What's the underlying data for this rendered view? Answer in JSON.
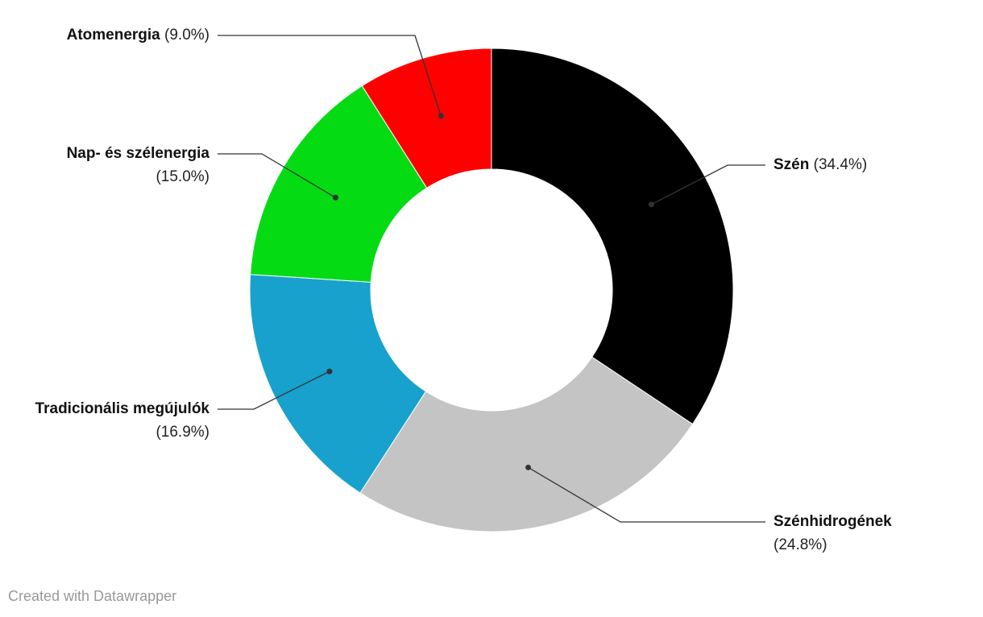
{
  "chart_data": {
    "type": "donut",
    "categories": [
      "Szén",
      "Szénhidrogének",
      "Tradicionális megújulók",
      "Nap- és szélenergia",
      "Atomenergia"
    ],
    "values": [
      34.4,
      24.8,
      16.9,
      15.0,
      9.0
    ],
    "value_labels": [
      "(34.4%)",
      "(24.8%)",
      "(16.9%)",
      "(15.0%)",
      "(9.0%)"
    ],
    "colors": [
      "#000000",
      "#c4c4c4",
      "#18a1cd",
      "#04db13",
      "#ff0000"
    ],
    "credit": "Created with Datawrapper"
  }
}
